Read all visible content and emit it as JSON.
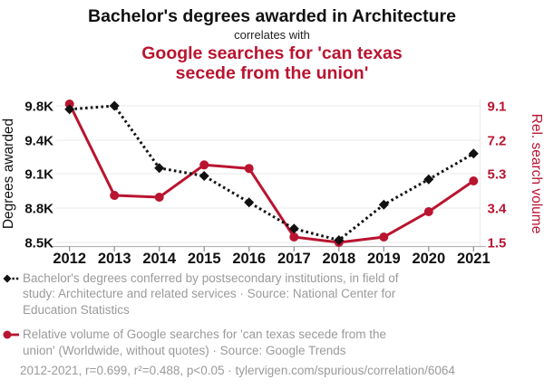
{
  "colors": {
    "red": "#b91430",
    "black": "#111111",
    "gray_text": "#9a9a9a",
    "gridline": "#e9e9e9",
    "axis_line": "#b5b5b5"
  },
  "header": {
    "title": "Bachelor's degrees awarded in Architecture",
    "connector": "correlates with",
    "subtitle": "Google searches for 'can texas\nsecede from the union'"
  },
  "chart_data": {
    "type": "line",
    "x": [
      2012,
      2013,
      2014,
      2015,
      2016,
      2017,
      2018,
      2019,
      2020,
      2021
    ],
    "series": [
      {
        "name": "Bachelor's degrees awarded in Architecture",
        "axis": "left",
        "marker": "diamond",
        "line_style": "dotted",
        "color": "#111111",
        "values": [
          9760,
          9800,
          9150,
          9080,
          8850,
          8620,
          8520,
          8830,
          9050,
          9280
        ]
      },
      {
        "name": "Google searches for 'can texas secede from the union'",
        "axis": "right",
        "marker": "circle",
        "line_style": "solid",
        "color": "#b91430",
        "values": [
          9.2,
          4.1,
          4.0,
          5.8,
          5.6,
          1.8,
          1.5,
          1.8,
          3.2,
          4.9
        ]
      }
    ],
    "left_axis": {
      "label": "Degrees awarded",
      "tick_labels": [
        "9.8K",
        "9.4K",
        "9.1K",
        "8.8K",
        "8.5K"
      ],
      "tick_values": [
        9800,
        9400,
        9100,
        8800,
        8500
      ]
    },
    "right_axis": {
      "label": "Rel. search volume",
      "tick_labels": [
        "9.1",
        "7.2",
        "5.3",
        "3.4",
        "1.5"
      ],
      "tick_values": [
        9.1,
        7.2,
        5.3,
        3.4,
        1.5
      ]
    },
    "x_range": [
      2012,
      2021
    ],
    "grid": "horizontal"
  },
  "legend": {
    "items": [
      {
        "marker": "black-diamond-dotted-line",
        "text": "Bachelor's degrees conferred by postsecondary institutions, in field of\nstudy: Architecture and related services · Source: National Center for\nEducation Statistics"
      },
      {
        "marker": "red-circle-solid-line",
        "text": "Relative volume of Google searches for 'can texas secede from the\nunion' (Worldwide, without quotes) · Source: Google Trends"
      }
    ]
  },
  "footer": {
    "text": "2012-2021, r=0.699, r²=0.488, p<0.05 · tylervigen.com/spurious/correlation/6064"
  }
}
